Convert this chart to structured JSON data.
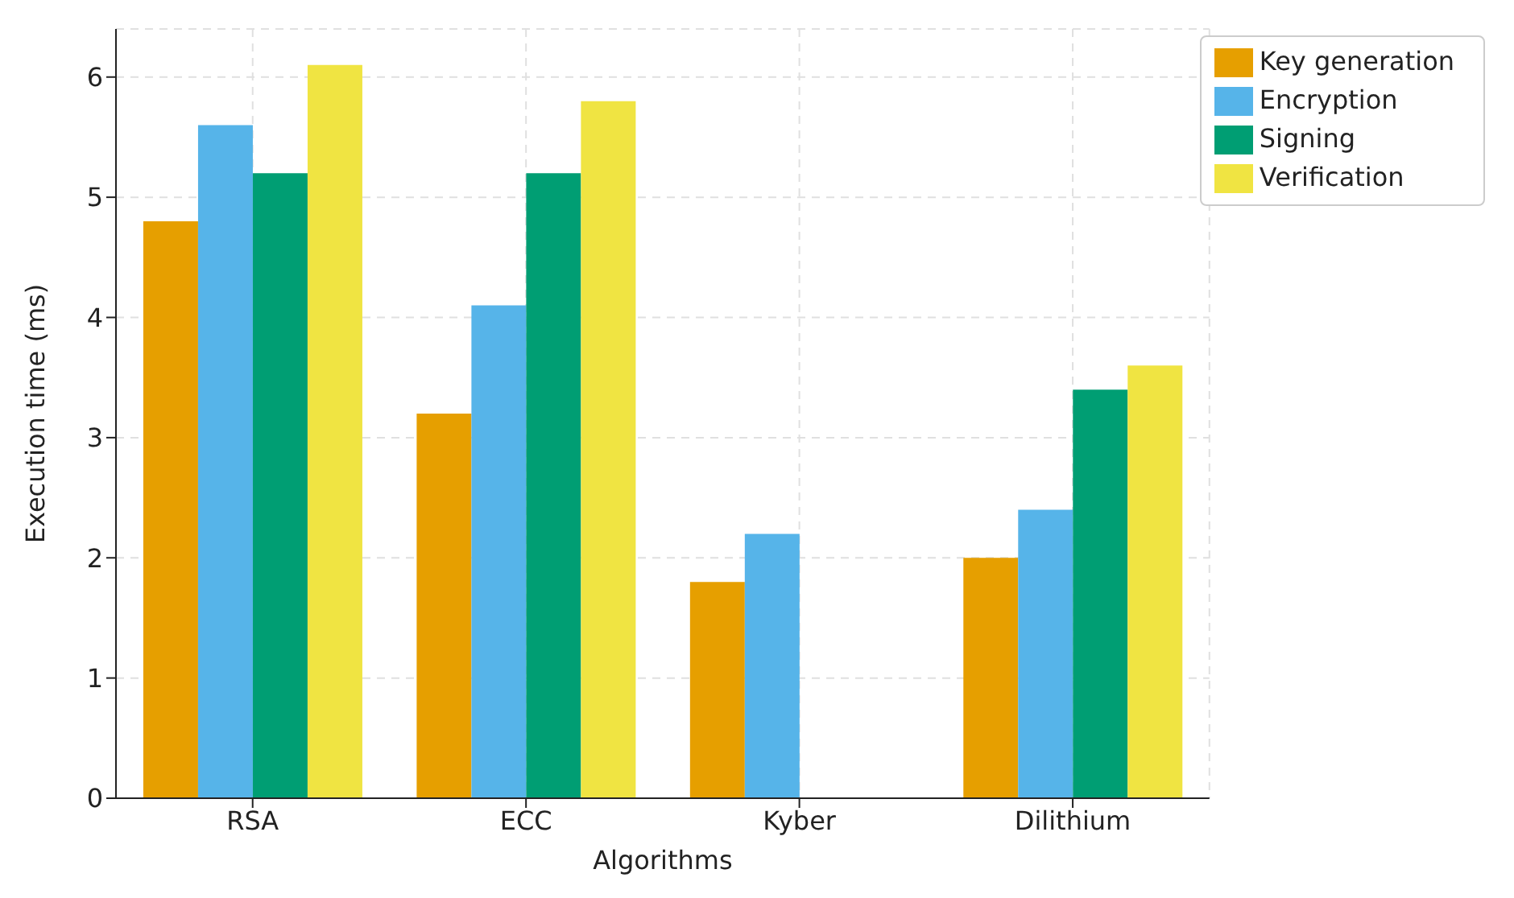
{
  "chart_data": {
    "type": "bar",
    "xlabel": "Algorithms",
    "ylabel": "Execution time (ms)",
    "categories": [
      "RSA",
      "ECC",
      "Kyber",
      "Dilithium"
    ],
    "series": [
      {
        "name": "Key generation",
        "color": "#e69f00",
        "values": [
          4.8,
          3.2,
          1.8,
          2.0
        ]
      },
      {
        "name": "Encryption",
        "color": "#56b4e9",
        "values": [
          5.6,
          4.1,
          2.2,
          2.4
        ]
      },
      {
        "name": "Signing",
        "color": "#009e73",
        "values": [
          5.2,
          5.2,
          null,
          3.4
        ]
      },
      {
        "name": "Verification",
        "color": "#f0e442",
        "values": [
          6.1,
          5.8,
          null,
          3.6
        ]
      }
    ],
    "ylim": [
      0,
      6.4
    ],
    "yticks": [
      0,
      1,
      2,
      3,
      4,
      5,
      6
    ],
    "grid": true,
    "legend": "top right"
  }
}
